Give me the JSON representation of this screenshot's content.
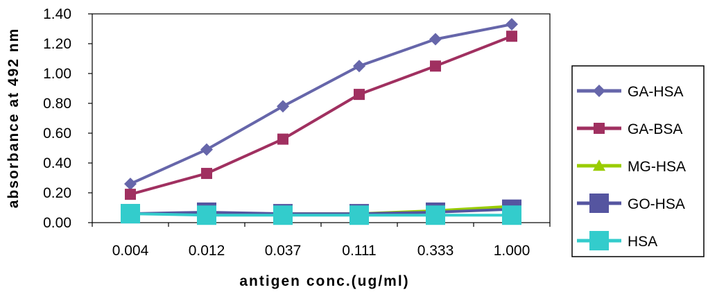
{
  "chart_data": {
    "type": "line",
    "xlabel": "antigen conc.(ug/ml)",
    "ylabel": "absorbance at 492 nm",
    "categories": [
      "0.004",
      "0.012",
      "0.037",
      "0.111",
      "0.333",
      "1.000"
    ],
    "y_ticks": [
      "0.00",
      "0.20",
      "0.40",
      "0.60",
      "0.80",
      "1.00",
      "1.20",
      "1.40"
    ],
    "ylim": [
      0,
      1.4
    ],
    "grid": false,
    "legend_position": "right",
    "series": [
      {
        "name": "GA-HSA",
        "color": "#6666aa",
        "marker": "diamond",
        "values": [
          0.26,
          0.49,
          0.78,
          1.05,
          1.23,
          1.33
        ]
      },
      {
        "name": "GA-BSA",
        "color": "#a03060",
        "marker": "square",
        "values": [
          0.19,
          0.33,
          0.56,
          0.86,
          1.05,
          1.25
        ]
      },
      {
        "name": "MG-HSA",
        "color": "#99cc00",
        "marker": "triangle",
        "values": [
          0.06,
          0.06,
          0.06,
          0.06,
          0.08,
          0.11
        ]
      },
      {
        "name": "GO-HSA",
        "color": "#5555a0",
        "marker": "square-large",
        "values": [
          0.06,
          0.07,
          0.06,
          0.06,
          0.07,
          0.09
        ]
      },
      {
        "name": "HSA",
        "color": "#33cccc",
        "marker": "square-large",
        "values": [
          0.06,
          0.05,
          0.05,
          0.05,
          0.05,
          0.05
        ]
      }
    ]
  }
}
